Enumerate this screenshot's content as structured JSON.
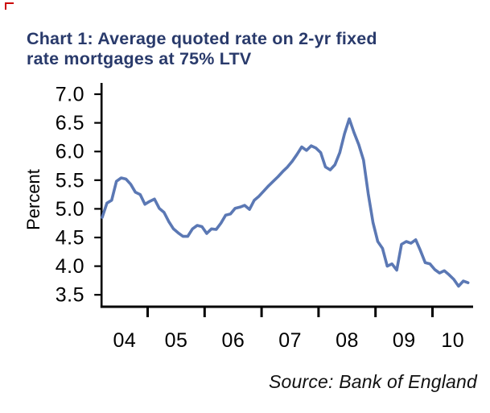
{
  "artifact_mark": {
    "color": "#CC0000",
    "shape": "small corner bracket"
  },
  "title": {
    "line1": "Chart 1: Average quoted rate on 2-yr fixed",
    "line2": "rate mortgages at 75% LTV",
    "color": "#293A6B"
  },
  "footer": {
    "source": "Source: Bank of England"
  },
  "chart_data": {
    "type": "line",
    "title": "Chart 1: Average quoted rate on 2-yr fixed rate mortgages at 75% LTV",
    "xlabel": "",
    "ylabel": "Percent",
    "source_note": "Source: Bank of England",
    "grid": false,
    "legend": "none",
    "ylim": [
      3.3,
      7.2
    ],
    "y_ticks": [
      7.0,
      6.5,
      6.0,
      5.5,
      5.0,
      4.5,
      4.0,
      3.5
    ],
    "y_tick_labels": [
      "7.0",
      "6.5",
      "6.0",
      "5.5",
      "5.0",
      "4.5",
      "4.0",
      "3.5"
    ],
    "x_tick_labels": [
      "04",
      "05",
      "06",
      "07",
      "08",
      "09",
      "10"
    ],
    "series": [
      {
        "name": "Average quoted rate on 2-yr fixed rate mortgages at 75% LTV",
        "color": "#5B78B4",
        "frequency": "monthly",
        "start": "2004-03",
        "end": "2010-08",
        "values": [
          4.85,
          5.1,
          5.15,
          5.48,
          5.54,
          5.52,
          5.43,
          5.29,
          5.25,
          5.08,
          5.13,
          5.17,
          5.01,
          4.94,
          4.78,
          4.65,
          4.58,
          4.52,
          4.52,
          4.65,
          4.71,
          4.69,
          4.57,
          4.65,
          4.64,
          4.75,
          4.89,
          4.91,
          5.01,
          5.03,
          5.06,
          4.99,
          5.15,
          5.22,
          5.31,
          5.4,
          5.48,
          5.56,
          5.65,
          5.73,
          5.83,
          5.95,
          6.08,
          6.02,
          6.1,
          6.06,
          5.98,
          5.73,
          5.68,
          5.77,
          5.98,
          6.31,
          6.57,
          6.33,
          6.12,
          5.85,
          5.26,
          4.76,
          4.43,
          4.31,
          4.0,
          4.04,
          3.93,
          4.38,
          4.43,
          4.4,
          4.46,
          4.27,
          4.06,
          4.04,
          3.94,
          3.88,
          3.92,
          3.85,
          3.77,
          3.65,
          3.74,
          3.71
        ]
      }
    ]
  }
}
